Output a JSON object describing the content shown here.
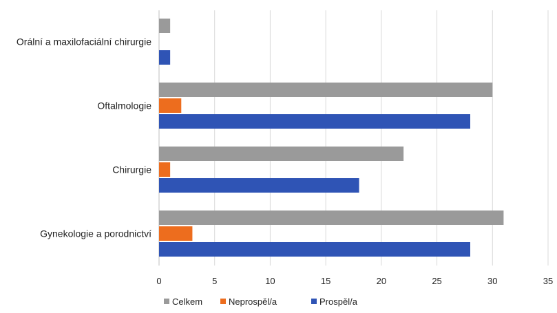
{
  "chart_data": {
    "type": "bar",
    "orientation": "horizontal",
    "categories": [
      "Gynekologie a porodnictví",
      "Chirurgie",
      "Oftalmologie",
      "Orální a maxilofaciální chirurgie"
    ],
    "series": [
      {
        "name": "Prospěl/a",
        "color": "#2f54b5",
        "values": [
          28,
          18,
          28,
          1
        ]
      },
      {
        "name": "Neprospěl/a",
        "color": "#ed6d1e",
        "values": [
          3,
          1,
          2,
          0
        ]
      },
      {
        "name": "Celkem",
        "color": "#9a9a9a",
        "values": [
          31,
          22,
          30,
          1
        ]
      }
    ],
    "legend_order": [
      "Celkem",
      "Neprospěl/a",
      "Prospěl/a"
    ],
    "xlim": [
      0,
      35
    ],
    "xticks": [
      "0",
      "5",
      "10",
      "15",
      "20",
      "25",
      "30",
      "35"
    ],
    "title": "",
    "xlabel": "",
    "ylabel": "",
    "grid": true,
    "legend_position": "bottom"
  }
}
